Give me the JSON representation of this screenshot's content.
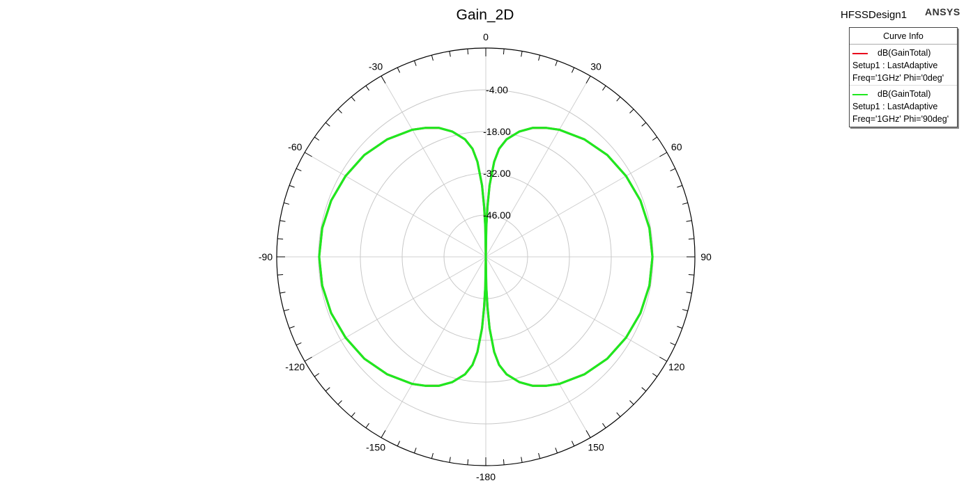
{
  "header": {
    "title": "Gain_2D",
    "design_name": "HFSSDesign1",
    "brand": "ANSYS"
  },
  "legend": {
    "header": "Curve Info",
    "entries": [
      {
        "name": "dB(GainTotal)",
        "setup": "Setup1 : LastAdaptive",
        "params": "Freq='1GHz' Phi='0deg'",
        "color": "#e8001c"
      },
      {
        "name": "dB(GainTotal)",
        "setup": "Setup1 : LastAdaptive",
        "params": "Freq='1GHz' Phi='90deg'",
        "color": "#1fe81f"
      }
    ]
  },
  "chart_data": {
    "type": "polar",
    "title": "Gain_2D",
    "angle_unit": "deg",
    "angle_ticks": [
      0,
      30,
      60,
      90,
      120,
      150,
      -180,
      -150,
      -120,
      -90,
      -60,
      -30
    ],
    "radial_ticks": [
      "-4.00",
      "-18.00",
      "-32.00",
      "-46.00"
    ],
    "radial_range_db": [
      -60,
      10
    ],
    "grid": true,
    "legend_position": "top-right",
    "series": [
      {
        "name": "dB(GainTotal) Setup1 : LastAdaptive Freq='1GHz' Phi='0deg'",
        "color": "#e8001c",
        "theta_deg": [
          0,
          1,
          2,
          3,
          5,
          7,
          10,
          15,
          20,
          25,
          30,
          40,
          50,
          60,
          70,
          80,
          90,
          100,
          110,
          120,
          130,
          140,
          150,
          155,
          160,
          165,
          170,
          173,
          175,
          177,
          178,
          179,
          180
        ],
        "gain_db": [
          -60,
          -50,
          -43,
          -36,
          -28,
          -23.5,
          -20,
          -16.5,
          -14,
          -12.3,
          -10.8,
          -8.6,
          -6.9,
          -5.8,
          -4.9,
          -4.4,
          -4.2,
          -4.4,
          -4.9,
          -5.8,
          -6.9,
          -8.6,
          -10.8,
          -12.3,
          -14,
          -16.5,
          -20,
          -23.5,
          -28,
          -36,
          -43,
          -50,
          -60
        ]
      },
      {
        "name": "dB(GainTotal) Setup1 : LastAdaptive Freq='1GHz' Phi='90deg'",
        "color": "#1fe81f",
        "theta_deg": [
          0,
          1,
          2,
          3,
          5,
          7,
          10,
          15,
          20,
          25,
          30,
          40,
          50,
          60,
          70,
          80,
          90,
          100,
          110,
          120,
          130,
          140,
          150,
          155,
          160,
          165,
          170,
          173,
          175,
          177,
          178,
          179,
          180
        ],
        "gain_db": [
          -60,
          -50,
          -43,
          -36,
          -28,
          -23.5,
          -20,
          -16.5,
          -14,
          -12.3,
          -10.8,
          -8.6,
          -6.9,
          -5.8,
          -4.9,
          -4.4,
          -4.2,
          -4.4,
          -4.9,
          -5.8,
          -6.9,
          -8.6,
          -10.8,
          -12.3,
          -14,
          -16.5,
          -20,
          -23.5,
          -28,
          -36,
          -43,
          -50,
          -60
        ]
      }
    ]
  }
}
